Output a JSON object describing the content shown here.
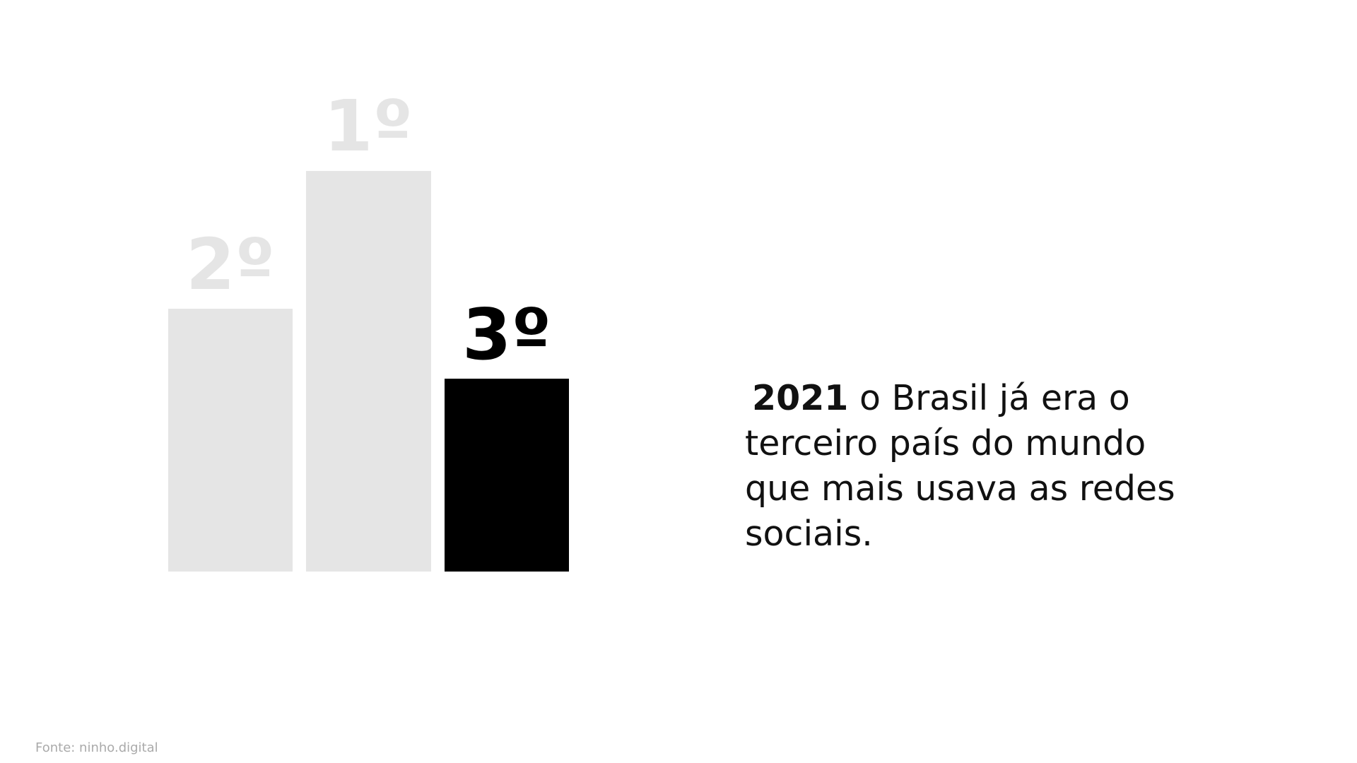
{
  "podium": [
    {
      "label": "2º"
    },
    {
      "label": "1º"
    },
    {
      "label": "3º"
    }
  ],
  "statement": {
    "highlight": "2021",
    "text": "o Brasil já era o terceiro país do mundo que mais usava as redes sociais."
  },
  "source": "Fonte: ninho.digital"
}
